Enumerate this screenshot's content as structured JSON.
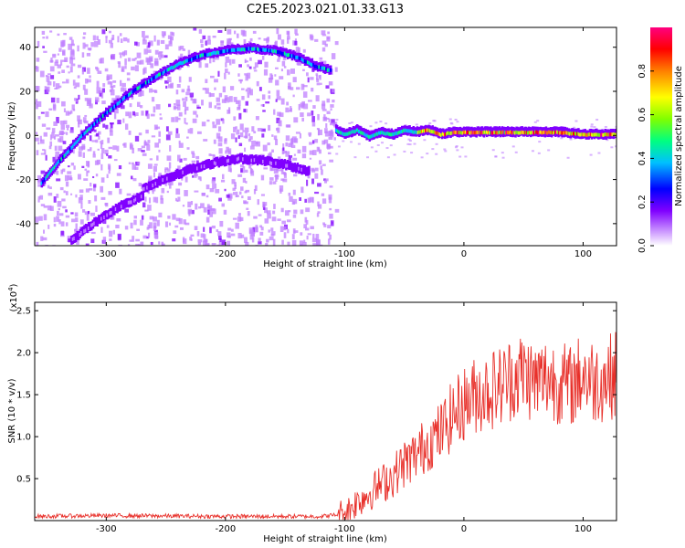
{
  "title": "C2E5.2023.021.01.33.G13",
  "chart_data": [
    {
      "type": "heatmap",
      "xlabel": "Height of straight line (km)",
      "ylabel": "Frequency (Hz)",
      "xlim": [
        -360,
        128
      ],
      "ylim": [
        -50,
        49
      ],
      "xticks": [
        -300,
        -200,
        -100,
        0,
        100
      ],
      "xtick_labels": [
        "-300",
        "-200",
        "-100",
        "0",
        "100"
      ],
      "yticks": [
        -40,
        -20,
        0,
        20,
        40
      ],
      "ytick_labels": [
        "-40",
        "-20",
        "0",
        "20",
        "40"
      ],
      "colorbar": {
        "label": "Normalized spectral amplitude",
        "range": [
          0,
          1
        ],
        "ticks": [
          0,
          0.2,
          0.4,
          0.6,
          0.8
        ],
        "tick_labels": [
          "0.0",
          "0.2",
          "0.4",
          "0.6",
          "0.8"
        ],
        "colormap": [
          "#ffffff",
          "#c080ff",
          "#8000ff",
          "#0000ff",
          "#00c0ff",
          "#00ff80",
          "#80ff00",
          "#ffff00",
          "#ff8000",
          "#ff0000",
          "#ff0080"
        ]
      },
      "ridges": [
        {
          "x": [
            -355,
            -340,
            -320,
            -300,
            -280,
            -260,
            -240,
            -220,
            -200,
            -180,
            -160,
            -140,
            -125,
            -112
          ],
          "y": [
            -22,
            -12,
            0,
            10,
            19,
            26,
            32,
            36,
            38,
            39,
            38,
            35,
            31,
            29
          ],
          "amplitude": 0.45
        },
        {
          "x": [
            -270,
            -250,
            -230,
            -210,
            -190,
            -170,
            -150,
            -130
          ],
          "y": [
            -25,
            -20,
            -16,
            -13,
            -11,
            -12,
            -14,
            -17
          ],
          "amplitude": 0.2
        },
        {
          "x": [
            -330,
            -310,
            -290,
            -270
          ],
          "y": [
            -48,
            -40,
            -33,
            -28
          ],
          "amplitude": 0.18
        },
        {
          "x": [
            -108,
            -100,
            -90,
            -80,
            -70,
            -60,
            -50,
            -40,
            -30,
            -20,
            -10,
            0,
            20,
            40,
            60,
            80,
            100,
            128
          ],
          "y": [
            2,
            0,
            2,
            -1,
            1,
            0,
            2,
            1,
            2,
            0,
            1,
            1,
            1,
            1,
            1,
            1,
            0,
            0
          ],
          "amplitude": 0.9
        }
      ]
    },
    {
      "type": "line",
      "xlabel": "Height of straight line (km)",
      "ylabel": "SNR (10 * v/v)",
      "y_multiplier_label": "(x10",
      "y_multiplier_exp": "4",
      "y_multiplier_close": ")",
      "xlim": [
        -360,
        128
      ],
      "ylim": [
        0,
        2.6
      ],
      "xticks": [
        -300,
        -200,
        -100,
        0,
        100
      ],
      "xtick_labels": [
        "-300",
        "-200",
        "-100",
        "0",
        "100"
      ],
      "yticks": [
        0.5,
        1.0,
        1.5,
        2.0,
        2.5
      ],
      "ytick_labels": [
        "0.5",
        "1.0",
        "1.5",
        "2.0",
        "2.5"
      ],
      "series": [
        {
          "color": "#e8302a",
          "x": [
            -360,
            -300,
            -200,
            -120,
            -100,
            -90,
            -80,
            -70,
            -60,
            -50,
            -40,
            -30,
            -20,
            -10,
            0,
            10,
            20,
            30,
            40,
            50,
            60,
            70,
            80,
            90,
            100,
            110,
            120,
            128
          ],
          "y": [
            0.05,
            0.06,
            0.05,
            0.05,
            0.08,
            0.2,
            0.3,
            0.4,
            0.5,
            0.65,
            0.75,
            0.9,
            1.0,
            1.2,
            1.35,
            1.45,
            1.5,
            1.55,
            1.65,
            1.7,
            1.6,
            1.65,
            1.6,
            1.55,
            1.7,
            1.6,
            1.65,
            1.7
          ]
        }
      ]
    }
  ]
}
